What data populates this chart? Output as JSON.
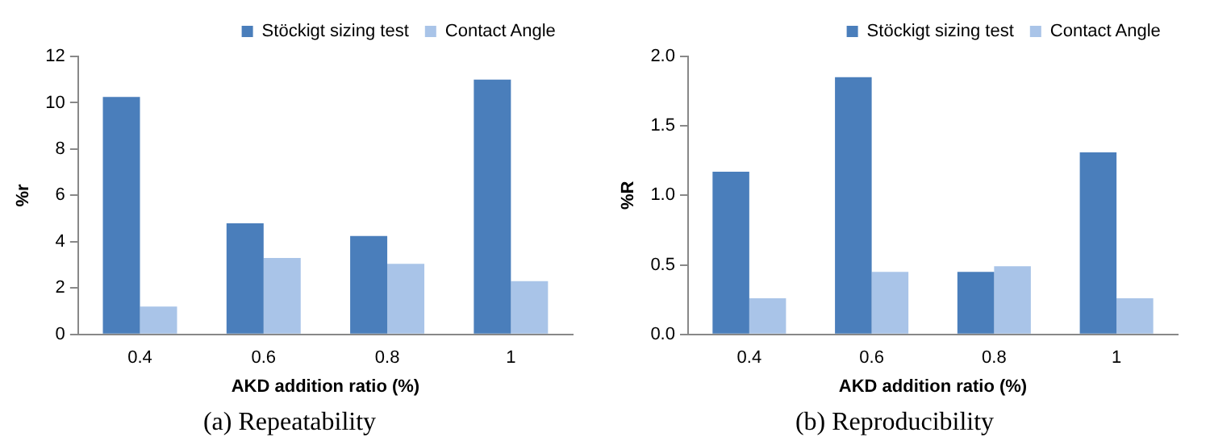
{
  "chart_data": [
    {
      "type": "bar",
      "title": "(a) Repeatability",
      "xlabel": "AKD addition ratio (%)",
      "ylabel": "%r",
      "categories": [
        "0.4",
        "0.6",
        "0.8",
        "1"
      ],
      "series": [
        {
          "name": "Stöckigt sizing test",
          "color": "#4a7ebb",
          "values": [
            10.25,
            4.8,
            4.25,
            11.0
          ]
        },
        {
          "name": "Contact Angle",
          "color": "#a9c4e8",
          "values": [
            1.2,
            3.3,
            3.05,
            2.3
          ]
        }
      ],
      "ylim": [
        0,
        12
      ],
      "yticks": [
        0,
        2,
        4,
        6,
        8,
        10,
        12
      ],
      "grid": false,
      "legend": "top"
    },
    {
      "type": "bar",
      "title": "(b) Reproducibility",
      "xlabel": "AKD addition ratio (%)",
      "ylabel": "%R",
      "categories": [
        "0.4",
        "0.6",
        "0.8",
        "1"
      ],
      "series": [
        {
          "name": "Stöckigt sizing test",
          "color": "#4a7ebb",
          "values": [
            1.17,
            1.85,
            0.45,
            1.31
          ]
        },
        {
          "name": "Contact Angle",
          "color": "#a9c4e8",
          "values": [
            0.26,
            0.45,
            0.49,
            0.26
          ]
        }
      ],
      "ylim": [
        0,
        2
      ],
      "yticks": [
        {
          "value": 0,
          "label": "0.0"
        },
        {
          "value": 0.5,
          "label": "0.5"
        },
        {
          "value": 1,
          "label": "1.0"
        },
        {
          "value": 1.5,
          "label": "1.5"
        },
        {
          "value": 2,
          "label": "2.0"
        }
      ],
      "grid": false,
      "legend": "top"
    }
  ]
}
